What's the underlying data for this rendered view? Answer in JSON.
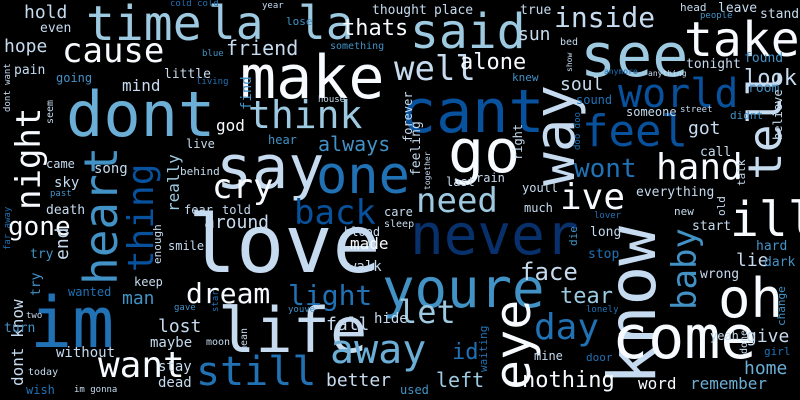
{
  "wordcloud": {
    "background": "#000000",
    "palette": {
      "white": "#f7fbff",
      "pale": "#c6dbef",
      "light": "#9ecae1",
      "mid": "#6baed6",
      "blue": "#4292c6",
      "deep": "#2171b5",
      "dark": "#08519c",
      "navy": "#08306b"
    },
    "words": [
      {
        "id": "love",
        "text": "love"
      },
      {
        "id": "never",
        "text": "never"
      },
      {
        "id": "im",
        "text": "im"
      },
      {
        "id": "know",
        "text": "know"
      },
      {
        "id": "life",
        "text": "life"
      },
      {
        "id": "dont",
        "text": "dont"
      },
      {
        "id": "youre",
        "text": "youre"
      },
      {
        "id": "make",
        "text": "make"
      },
      {
        "id": "cant",
        "text": "cant"
      },
      {
        "id": "time",
        "text": "time"
      },
      {
        "id": "say",
        "text": "say"
      },
      {
        "id": "heart",
        "text": "heart"
      },
      {
        "id": "one",
        "text": "one"
      },
      {
        "id": "way",
        "text": "way"
      },
      {
        "id": "come",
        "text": "come"
      },
      {
        "id": "see",
        "text": "see"
      },
      {
        "id": "go",
        "text": "go"
      },
      {
        "id": "said",
        "text": "said"
      },
      {
        "id": "take",
        "text": "take"
      },
      {
        "id": "la1",
        "text": "la"
      },
      {
        "id": "la2",
        "text": "la"
      },
      {
        "id": "eye",
        "text": "eye"
      },
      {
        "id": "oh",
        "text": "oh"
      },
      {
        "id": "ill",
        "text": "ill"
      },
      {
        "id": "tell",
        "text": "tell"
      },
      {
        "id": "feel",
        "text": "feel"
      },
      {
        "id": "cause",
        "text": "cause"
      },
      {
        "id": "think",
        "text": "think"
      },
      {
        "id": "night",
        "text": "night"
      },
      {
        "id": "want",
        "text": "want"
      },
      {
        "id": "still",
        "text": "still"
      },
      {
        "id": "away",
        "text": "away"
      },
      {
        "id": "world",
        "text": "world"
      },
      {
        "id": "thing",
        "text": "thing"
      },
      {
        "id": "baby",
        "text": "baby"
      },
      {
        "id": "cry",
        "text": "cry"
      },
      {
        "id": "back",
        "text": "back"
      },
      {
        "id": "need",
        "text": "need"
      },
      {
        "id": "hand",
        "text": "hand"
      },
      {
        "id": "inside",
        "text": "inside"
      },
      {
        "id": "well",
        "text": "well"
      },
      {
        "id": "dream",
        "text": "dream"
      },
      {
        "id": "ive",
        "text": "ive"
      },
      {
        "id": "day",
        "text": "day"
      },
      {
        "id": "let",
        "text": "let"
      },
      {
        "id": "light",
        "text": "light"
      },
      {
        "id": "gone",
        "text": "gone"
      },
      {
        "id": "alone",
        "text": "alone"
      },
      {
        "id": "wont",
        "text": "wont"
      },
      {
        "id": "face",
        "text": "face"
      },
      {
        "id": "tear",
        "text": "tear"
      },
      {
        "id": "nothing",
        "text": "nothing"
      },
      {
        "id": "left",
        "text": "left"
      },
      {
        "id": "better",
        "text": "better"
      },
      {
        "id": "fall",
        "text": "fall"
      },
      {
        "id": "always",
        "text": "always"
      },
      {
        "id": "friend",
        "text": "friend"
      },
      {
        "id": "thats",
        "text": "thats"
      },
      {
        "id": "look",
        "text": "look"
      },
      {
        "id": "hold",
        "text": "hold"
      },
      {
        "id": "hope",
        "text": "hope"
      },
      {
        "id": "mind",
        "text": "mind"
      },
      {
        "id": "around",
        "text": "around"
      },
      {
        "id": "lost",
        "text": "lost"
      },
      {
        "id": "made",
        "text": "made"
      },
      {
        "id": "word",
        "text": "word"
      },
      {
        "id": "remember",
        "text": "remember"
      },
      {
        "id": "give",
        "text": "give"
      },
      {
        "id": "home",
        "text": "home"
      },
      {
        "id": "soul",
        "text": "soul"
      },
      {
        "id": "sun",
        "text": "sun"
      },
      {
        "id": "got",
        "text": "got"
      },
      {
        "id": "lie",
        "text": "lie"
      },
      {
        "id": "end",
        "text": "end"
      },
      {
        "id": "really",
        "text": "really"
      },
      {
        "id": "god",
        "text": "god"
      },
      {
        "id": "id",
        "text": "id"
      },
      {
        "id": "man",
        "text": "man"
      },
      {
        "id": "stay",
        "text": "stay"
      },
      {
        "id": "dead",
        "text": "dead"
      },
      {
        "id": "without",
        "text": "without"
      },
      {
        "id": "maybe",
        "text": "maybe"
      },
      {
        "id": "walk",
        "text": "walk"
      },
      {
        "id": "hide",
        "text": "hide"
      },
      {
        "id": "sky",
        "text": "sky"
      },
      {
        "id": "song",
        "text": "song"
      },
      {
        "id": "even",
        "text": "even"
      },
      {
        "id": "pain",
        "text": "pain"
      },
      {
        "id": "little",
        "text": "little"
      },
      {
        "id": "going",
        "text": "going"
      },
      {
        "id": "find",
        "text": "find"
      },
      {
        "id": "thought",
        "text": "thought"
      },
      {
        "id": "place",
        "text": "place"
      },
      {
        "id": "true",
        "text": "true"
      },
      {
        "id": "leave",
        "text": "leave"
      },
      {
        "id": "stand",
        "text": "stand"
      },
      {
        "id": "tonight",
        "text": "tonight"
      },
      {
        "id": "found",
        "text": "found"
      },
      {
        "id": "room",
        "text": "room"
      },
      {
        "id": "call",
        "text": "call"
      },
      {
        "id": "believe",
        "text": "believe"
      },
      {
        "id": "everything",
        "text": "everything"
      },
      {
        "id": "start",
        "text": "start"
      },
      {
        "id": "hard",
        "text": "hard"
      },
      {
        "id": "dark",
        "text": "dark"
      },
      {
        "id": "wrong",
        "text": "wrong"
      },
      {
        "id": "yeah",
        "text": "yeah"
      },
      {
        "id": "long",
        "text": "long"
      },
      {
        "id": "stop",
        "text": "stop"
      },
      {
        "id": "mine",
        "text": "mine"
      },
      {
        "id": "keep",
        "text": "keep"
      },
      {
        "id": "smile",
        "text": "smile"
      },
      {
        "id": "fear",
        "text": "fear"
      },
      {
        "id": "told",
        "text": "told"
      },
      {
        "id": "came",
        "text": "came"
      },
      {
        "id": "death",
        "text": "death"
      },
      {
        "id": "try1",
        "text": "try"
      },
      {
        "id": "try2",
        "text": "try"
      },
      {
        "id": "dontknow",
        "text": "dont know"
      },
      {
        "id": "blood",
        "text": "blood"
      },
      {
        "id": "care",
        "text": "care"
      },
      {
        "id": "sleep",
        "text": "sleep"
      },
      {
        "id": "feeling",
        "text": "feeling"
      },
      {
        "id": "last",
        "text": "last"
      },
      {
        "id": "rain",
        "text": "rain"
      },
      {
        "id": "youll",
        "text": "youll"
      },
      {
        "id": "much",
        "text": "much"
      },
      {
        "id": "right",
        "text": "right"
      },
      {
        "id": "someone",
        "text": "someone"
      },
      {
        "id": "sound",
        "text": "sound"
      },
      {
        "id": "forever",
        "text": "forever"
      },
      {
        "id": "knew",
        "text": "knew"
      },
      {
        "id": "live",
        "text": "live"
      },
      {
        "id": "hear",
        "text": "hear"
      },
      {
        "id": "behind",
        "text": "behind"
      },
      {
        "id": "enough",
        "text": "enough"
      },
      {
        "id": "turn",
        "text": "turn"
      },
      {
        "id": "wanted",
        "text": "wanted"
      },
      {
        "id": "wish",
        "text": "wish"
      },
      {
        "id": "today",
        "text": "today"
      },
      {
        "id": "imgonna",
        "text": "im gonna"
      },
      {
        "id": "used",
        "text": "used"
      },
      {
        "id": "door",
        "text": "door"
      },
      {
        "id": "moon",
        "text": "moon"
      },
      {
        "id": "waiting",
        "text": "waiting"
      },
      {
        "id": "didnt",
        "text": "didnt"
      },
      {
        "id": "street",
        "text": "street"
      },
      {
        "id": "new",
        "text": "new"
      },
      {
        "id": "old",
        "text": "old"
      },
      {
        "id": "talk",
        "text": "talk"
      },
      {
        "id": "change",
        "text": "change"
      },
      {
        "id": "girl",
        "text": "girl"
      },
      {
        "id": "done",
        "text": "done"
      },
      {
        "id": "something",
        "text": "something"
      },
      {
        "id": "house",
        "text": "house"
      },
      {
        "id": "lose",
        "text": "lose"
      },
      {
        "id": "year",
        "text": "year"
      },
      {
        "id": "head",
        "text": "head"
      },
      {
        "id": "people",
        "text": "people"
      },
      {
        "id": "coldcold",
        "text": "cold cold"
      },
      {
        "id": "blue",
        "text": "blue"
      },
      {
        "id": "living",
        "text": "living"
      },
      {
        "id": "seem",
        "text": "seem"
      },
      {
        "id": "dontwant",
        "text": "dont want"
      },
      {
        "id": "faraway",
        "text": "far away"
      },
      {
        "id": "past",
        "text": "past"
      },
      {
        "id": "gave",
        "text": "gave"
      },
      {
        "id": "star",
        "text": "star"
      },
      {
        "id": "mean",
        "text": "mean"
      },
      {
        "id": "youve",
        "text": "youve"
      },
      {
        "id": "two",
        "text": "two"
      },
      {
        "id": "lonely",
        "text": "lonely"
      },
      {
        "id": "lover",
        "text": "lover"
      },
      {
        "id": "die",
        "text": "die"
      },
      {
        "id": "together",
        "text": "together"
      },
      {
        "id": "doodoo",
        "text": "doo doo"
      },
      {
        "id": "anymore",
        "text": "anymore"
      },
      {
        "id": "anything",
        "text": "anything"
      },
      {
        "id": "bed",
        "text": "bed"
      },
      {
        "id": "show",
        "text": "show"
      }
    ]
  }
}
